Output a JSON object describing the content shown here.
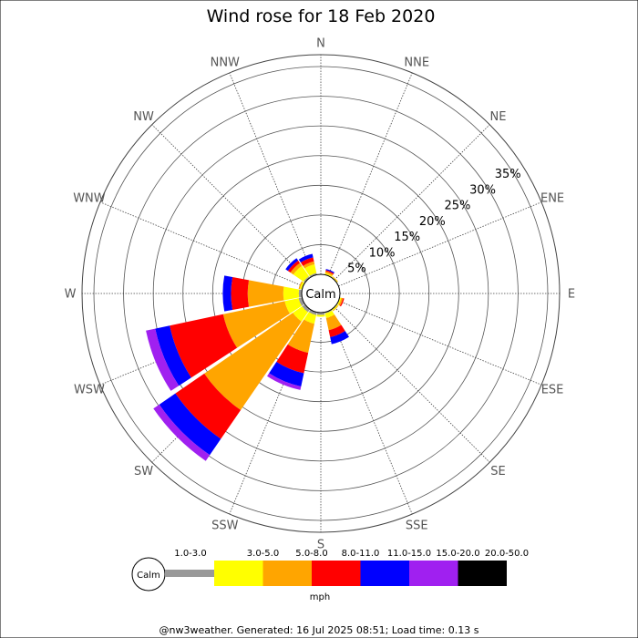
{
  "footer": "@nw3weather. Generated: 16 Jul 2025 08:51; Load time: 0.13 s",
  "chart_data": {
    "type": "wind-rose",
    "title": "Wind rose for 18 Feb 2020",
    "center_label": "Calm",
    "directions": [
      "N",
      "NNE",
      "NE",
      "ENE",
      "E",
      "ESE",
      "SE",
      "SSE",
      "S",
      "SSW",
      "SW",
      "WSW",
      "W",
      "WNW",
      "NW",
      "NNW"
    ],
    "radial_ticks": [
      5,
      10,
      15,
      20,
      25,
      30,
      35
    ],
    "radial_tick_labels": [
      "5%",
      "10%",
      "15%",
      "20%",
      "25%",
      "30%",
      "35%"
    ],
    "rmax": 37,
    "speed_bins": [
      "1.0-3.0",
      "3.0-5.0",
      "5.0-8.0",
      "8.0-11.0",
      "11.0-15.0",
      "15.0-20.0",
      "20.0-50.0"
    ],
    "bin_colors": [
      "#999999",
      "#ffff00",
      "#ffa500",
      "#ff0000",
      "#0000ff",
      "#a020f0",
      "#000000"
    ],
    "legend_calm": "Calm",
    "legend_unit": "mph",
    "series": [
      {
        "direction": "N",
        "cumulative": [
          0,
          0,
          0,
          0,
          0,
          0,
          0
        ]
      },
      {
        "direction": "NNE",
        "cumulative": [
          0.1,
          0.3,
          0.6,
          0.8,
          1.0,
          1.0,
          1.0
        ]
      },
      {
        "direction": "NE",
        "cumulative": [
          0.1,
          0.2,
          0.3,
          0.3,
          0.3,
          0.3,
          0.3
        ]
      },
      {
        "direction": "ENE",
        "cumulative": [
          0,
          0,
          0,
          0,
          0,
          0,
          0
        ]
      },
      {
        "direction": "E",
        "cumulative": [
          0,
          0,
          0,
          0,
          0,
          0,
          0
        ]
      },
      {
        "direction": "ESE",
        "cumulative": [
          0.1,
          0.3,
          0.6,
          0.8,
          0.8,
          0.8,
          0.8
        ]
      },
      {
        "direction": "SE",
        "cumulative": [
          0.1,
          0.3,
          0.4,
          0.4,
          0.4,
          0.4,
          0.4
        ]
      },
      {
        "direction": "SSE",
        "cumulative": [
          0.2,
          1.0,
          3.1,
          4.3,
          5.5,
          5.5,
          5.5
        ]
      },
      {
        "direction": "S",
        "cumulative": [
          0.4,
          0.7,
          0.7,
          0.7,
          0.7,
          0.7,
          0.7
        ]
      },
      {
        "direction": "SSW",
        "cumulative": [
          0.5,
          2.0,
          7.0,
          10.5,
          12.8,
          13.4,
          13.4
        ]
      },
      {
        "direction": "SW",
        "cumulative": [
          0.6,
          2.5,
          20.6,
          26.5,
          29.8,
          31.0,
          31.0
        ]
      },
      {
        "direction": "WSW",
        "cumulative": [
          0.6,
          3.0,
          13.6,
          22.8,
          25.3,
          26.9,
          26.9
        ]
      },
      {
        "direction": "W",
        "cumulative": [
          0.5,
          3.1,
          9.1,
          11.9,
          13.3,
          13.3,
          13.3
        ]
      },
      {
        "direction": "WNW",
        "cumulative": [
          0.1,
          0.4,
          0.6,
          0.6,
          0.6,
          0.6,
          0.6
        ]
      },
      {
        "direction": "NW",
        "cumulative": [
          0.3,
          2.4,
          3.0,
          3.5,
          4.0,
          4.0,
          4.0
        ]
      },
      {
        "direction": "NNW",
        "cumulative": [
          0.3,
          1.8,
          2.3,
          3.0,
          3.6,
          3.6,
          3.6
        ]
      }
    ]
  }
}
